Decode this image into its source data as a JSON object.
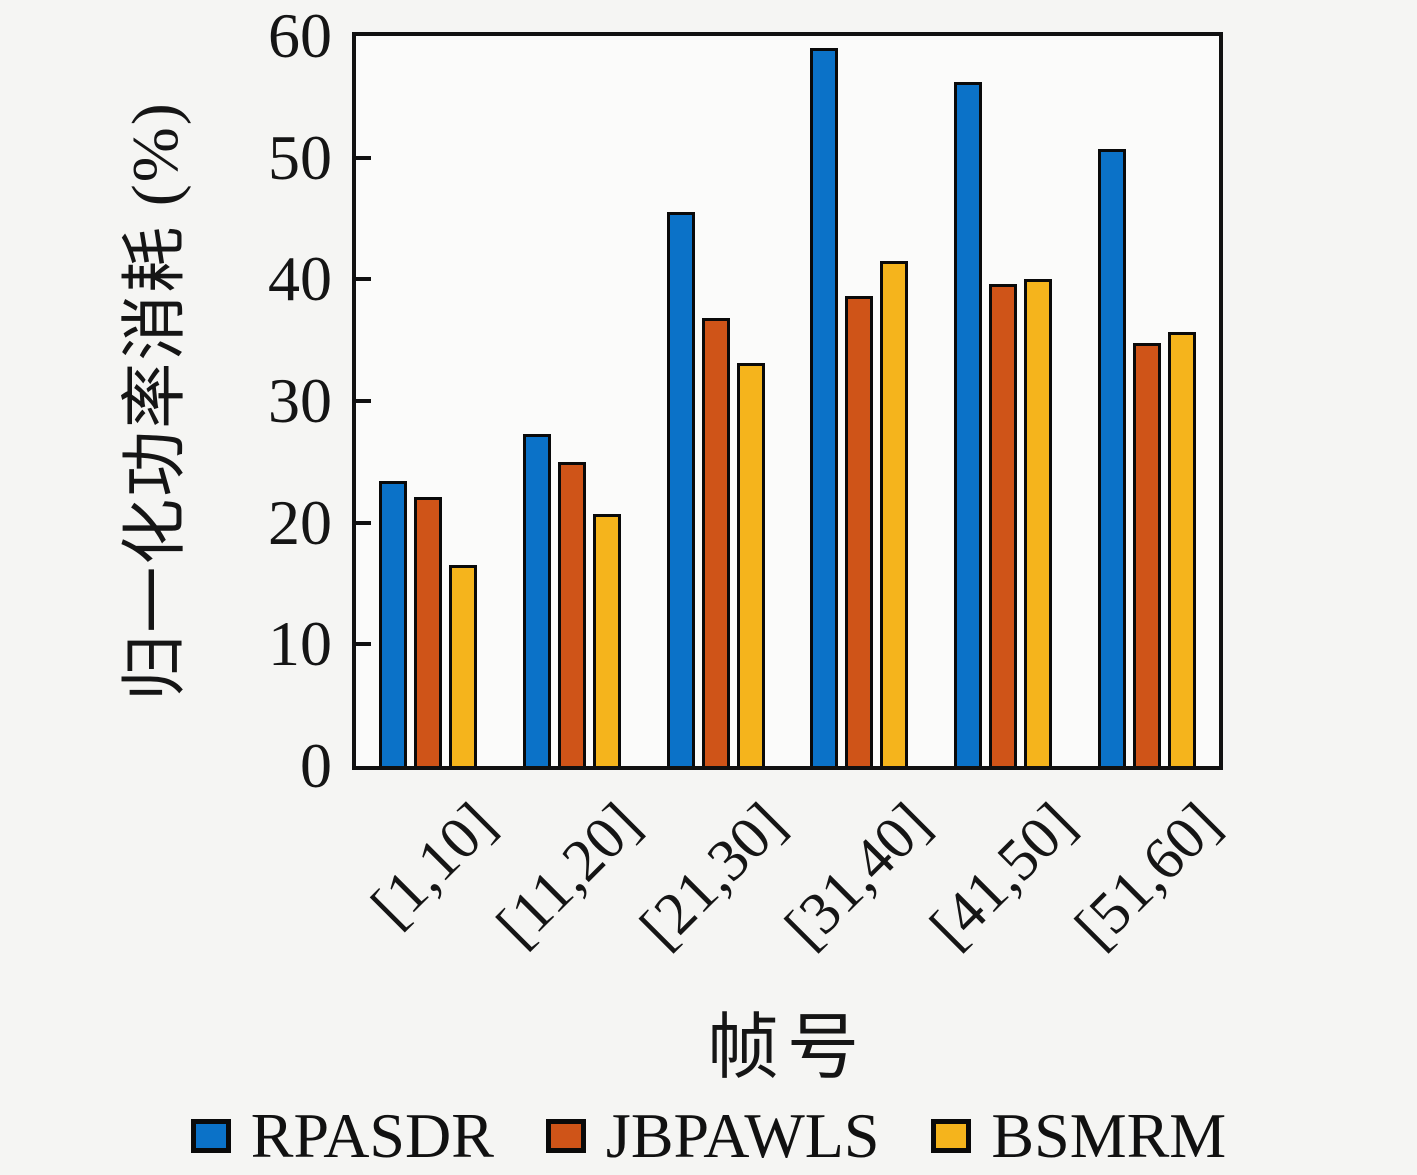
{
  "chart_data": {
    "type": "bar",
    "title": "",
    "categories": [
      "[1,10]",
      "[11,20]",
      "[21,30]",
      "[31,40]",
      "[41,50]",
      "[51,60]"
    ],
    "series": [
      {
        "name": "RPASDR",
        "color": "#0b72c8",
        "values": [
          23.4,
          27.3,
          45.5,
          59.0,
          56.2,
          50.7
        ]
      },
      {
        "name": "JBPAWLS",
        "color": "#cf5418",
        "values": [
          22.1,
          25.0,
          36.8,
          38.6,
          39.6,
          34.8
        ]
      },
      {
        "name": "BSMRM",
        "color": "#f5b41c",
        "values": [
          16.5,
          20.7,
          33.1,
          41.5,
          40.0,
          35.7
        ]
      }
    ],
    "xlabel": "帧号",
    "ylabel": "归一化功率消耗 (%)",
    "ylim": [
      0,
      60
    ],
    "yticks": [
      0,
      10,
      20,
      30,
      40,
      50,
      60
    ],
    "grid": false,
    "legend_position": "bottom",
    "bar_outline_color": "#0a0a0a",
    "axis_color": "#111111",
    "plot_background": "#fbfbfa",
    "page_background": "#f5f5f3"
  }
}
